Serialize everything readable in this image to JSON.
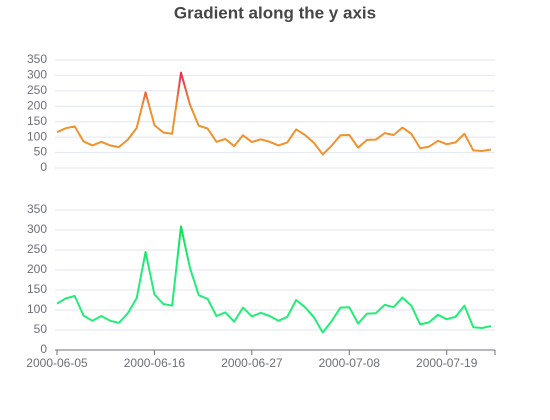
{
  "chart_data": [
    {
      "type": "line",
      "title": "Gradient along the y axis",
      "ylim": [
        0,
        350
      ],
      "yticks": [
        0,
        50,
        100,
        150,
        200,
        250,
        300,
        350
      ],
      "grid": true,
      "series": [
        {
          "color": [
            "#f0922e",
            "#e2374f"
          ],
          "values": [
            116,
            129,
            135,
            86,
            73,
            85,
            73,
            68,
            92,
            130,
            245,
            139,
            115,
            111,
            309,
            206,
            137,
            128,
            85,
            94,
            71,
            106,
            84,
            93,
            85,
            73,
            83,
            125,
            107,
            82,
            44,
            72,
            106,
            107,
            66,
            91,
            92,
            113,
            107,
            131,
            111,
            64,
            69,
            88,
            77,
            83,
            111,
            57,
            55,
            60
          ]
        }
      ]
    },
    {
      "type": "line",
      "ylim": [
        0,
        350
      ],
      "yticks": [
        0,
        50,
        100,
        150,
        200,
        250,
        300,
        350
      ],
      "grid": true,
      "categories": [
        "2000-06-05",
        null,
        null,
        null,
        null,
        null,
        null,
        null,
        null,
        null,
        null,
        "2000-06-16",
        null,
        null,
        null,
        null,
        null,
        null,
        null,
        null,
        null,
        null,
        "2000-06-27",
        null,
        null,
        null,
        null,
        null,
        null,
        null,
        null,
        null,
        null,
        "2000-07-08",
        null,
        null,
        null,
        null,
        null,
        null,
        null,
        null,
        null,
        null,
        "2000-07-19",
        null,
        null,
        null,
        null,
        null
      ],
      "series": [
        {
          "color": [
            "#22ee77",
            "#12e05a"
          ],
          "values": [
            116,
            129,
            135,
            86,
            73,
            85,
            73,
            68,
            92,
            130,
            245,
            139,
            115,
            111,
            309,
            206,
            137,
            128,
            85,
            94,
            71,
            106,
            84,
            93,
            85,
            73,
            83,
            125,
            107,
            82,
            44,
            72,
            106,
            107,
            66,
            91,
            92,
            113,
            107,
            131,
            111,
            64,
            69,
            88,
            77,
            83,
            111,
            57,
            55,
            60
          ]
        }
      ]
    }
  ]
}
